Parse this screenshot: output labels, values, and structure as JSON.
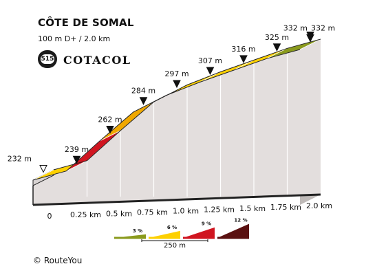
{
  "header": {
    "title": "CÔTE DE SOMAL",
    "subtitle": "100 m D+ / 2.0 km",
    "cotacol_number": "515",
    "cotacol_label": "COTACOL"
  },
  "footer": {
    "credit": "© RouteYou"
  },
  "colors": {
    "gradient_3": "#8a9a1c",
    "gradient_6": "#fdd000",
    "gradient_6_dark": "#f0a800",
    "gradient_9": "#d01520",
    "gradient_12": "#5a1010",
    "side_face": "#e3dedd",
    "base": "#222222"
  },
  "chart_data": {
    "type": "area",
    "title": "CÔTE DE SOMAL",
    "xlabel": "",
    "ylabel": "",
    "x": [
      0,
      0.25,
      0.5,
      0.75,
      1.0,
      1.25,
      1.5,
      1.75,
      2.0
    ],
    "y": [
      232,
      239,
      262,
      284,
      297,
      307,
      316,
      325,
      332
    ],
    "x_tick_labels": [
      "0",
      "0.25 km",
      "0.5 km",
      "0.75 km",
      "1.0 km",
      "1.25 km",
      "1.5 km",
      "1.75 km",
      "2.0 km"
    ],
    "point_labels": [
      "232 m",
      "239 m",
      "262 m",
      "284 m",
      "297 m",
      "307 m",
      "316 m",
      "325 m",
      "332 m"
    ],
    "summit_label": "332 m",
    "segment_gradient_class": [
      "6",
      "9",
      "6dark",
      "6",
      "6",
      "6",
      "6",
      "3"
    ],
    "legend": {
      "items": [
        {
          "label": "3 %",
          "color": "#8a9a1c"
        },
        {
          "label": "6 %",
          "color": "#fdd000"
        },
        {
          "label": "9 %",
          "color": "#d01520"
        },
        {
          "label": "12 %",
          "color": "#5a1010"
        }
      ],
      "scale_label": "250 m"
    },
    "xlim": [
      0,
      2.0
    ],
    "ylim": [
      232,
      332
    ]
  }
}
